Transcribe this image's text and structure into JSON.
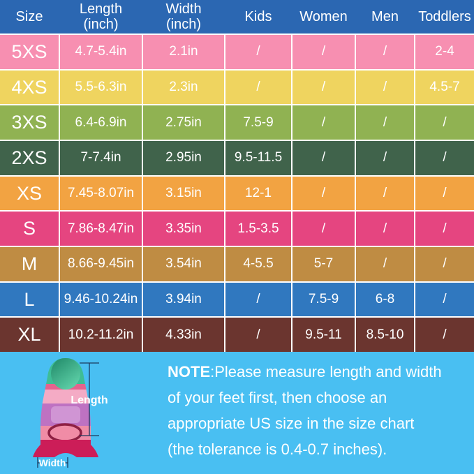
{
  "colors": {
    "header_bg": "#2B67B2",
    "bottom_bg": "#49BFF2",
    "grid_white": "#FFFFFF",
    "dimension_line": "#1C3A5E",
    "fin": {
      "tip_green": "#3EBD95",
      "tip_oval_dark": "#1E8766",
      "tip_oval_light": "#5ED0A8",
      "sliver_pink": "#E4638E",
      "light_pink": "#F4ABC5",
      "orchid": "#BE72C2",
      "orchid_light": "#D095D4",
      "rose": "#F08CA6",
      "crimson": "#D6215F",
      "base_crimson": "#CC1D58",
      "ring_stroke": "#8E2043"
    }
  },
  "table": {
    "columns": [
      {
        "label": "Size",
        "sub": ""
      },
      {
        "label": "Length",
        "sub": "(inch)"
      },
      {
        "label": "Width",
        "sub": "(inch)"
      },
      {
        "label": "Kids",
        "sub": ""
      },
      {
        "label": "Women",
        "sub": ""
      },
      {
        "label": "Men",
        "sub": ""
      },
      {
        "label": "Toddlers",
        "sub": ""
      }
    ],
    "rows": [
      {
        "size": "5XS",
        "length": "4.7-5.4in",
        "width": "2.1in",
        "kids": "/",
        "women": "/",
        "men": "/",
        "toddlers": "2-4",
        "color": "#F78FB1"
      },
      {
        "size": "4XS",
        "length": "5.5-6.3in",
        "width": "2.3in",
        "kids": "/",
        "women": "/",
        "men": "/",
        "toddlers": "4.5-7",
        "color": "#EFD45F"
      },
      {
        "size": "3XS",
        "length": "6.4-6.9in",
        "width": "2.75in",
        "kids": "7.5-9",
        "women": "/",
        "men": "/",
        "toddlers": "/",
        "color": "#90B252"
      },
      {
        "size": "2XS",
        "length": "7-7.4in",
        "width": "2.95in",
        "kids": "9.5-11.5",
        "women": "/",
        "men": "/",
        "toddlers": "/",
        "color": "#40634B"
      },
      {
        "size": "XS",
        "length": "7.45-8.07in",
        "width": "3.15in",
        "kids": "12-1",
        "women": "/",
        "men": "/",
        "toddlers": "/",
        "color": "#F2A342"
      },
      {
        "size": "S",
        "length": "7.86-8.47in",
        "width": "3.35in",
        "kids": "1.5-3.5",
        "women": "/",
        "men": "/",
        "toddlers": "/",
        "color": "#E54580"
      },
      {
        "size": "M",
        "length": "8.66-9.45in",
        "width": "3.54in",
        "kids": "4-5.5",
        "women": "5-7",
        "men": "/",
        "toddlers": "/",
        "color": "#BF8C43"
      },
      {
        "size": "L",
        "length": "9.46-10.24in",
        "width": "3.94in",
        "kids": "/",
        "women": "7.5-9",
        "men": "6-8",
        "toddlers": "/",
        "color": "#3078BF"
      },
      {
        "size": "XL",
        "length": "10.2-11.2in",
        "width": "4.33in",
        "kids": "/",
        "women": "9.5-11",
        "men": "8.5-10",
        "toddlers": "/",
        "color": "#6B352F"
      }
    ]
  },
  "fin": {
    "length_label": "Length",
    "width_label": "Width"
  },
  "note": {
    "bold": "NOTE",
    "line1_rest": ":Please measure length and width",
    "lines": [
      "of your feet first, then choose an",
      "appropriate US size in the size chart",
      "(the tolerance is 0.4-0.7 inches)."
    ]
  },
  "chart_data": {
    "type": "table",
    "columns": [
      "Size",
      "Length (inch)",
      "Width (inch)",
      "Kids",
      "Women",
      "Men",
      "Toddlers"
    ],
    "rows": [
      [
        "5XS",
        "4.7-5.4in",
        "2.1in",
        "/",
        "/",
        "/",
        "2-4"
      ],
      [
        "4XS",
        "5.5-6.3in",
        "2.3in",
        "/",
        "/",
        "/",
        "4.5-7"
      ],
      [
        "3XS",
        "6.4-6.9in",
        "2.75in",
        "7.5-9",
        "/",
        "/",
        "/"
      ],
      [
        "2XS",
        "7-7.4in",
        "2.95in",
        "9.5-11.5",
        "/",
        "/",
        "/"
      ],
      [
        "XS",
        "7.45-8.07in",
        "3.15in",
        "12-1",
        "/",
        "/",
        "/"
      ],
      [
        "S",
        "7.86-8.47in",
        "3.35in",
        "1.5-3.5",
        "/",
        "/",
        "/"
      ],
      [
        "M",
        "8.66-9.45in",
        "3.54in",
        "4-5.5",
        "5-7",
        "/",
        "/"
      ],
      [
        "L",
        "9.46-10.24in",
        "3.94in",
        "/",
        "7.5-9",
        "6-8",
        "/"
      ],
      [
        "XL",
        "10.2-11.2in",
        "4.33in",
        "/",
        "9.5-11",
        "8.5-10",
        "/"
      ]
    ]
  }
}
